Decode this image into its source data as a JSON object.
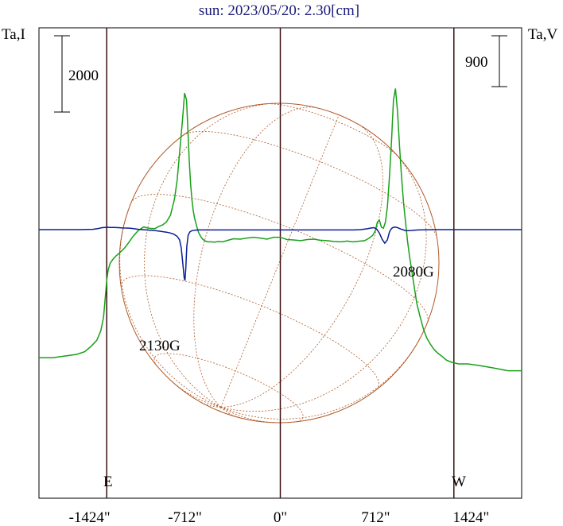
{
  "chart_data": {
    "type": "line",
    "title": "sun: 2023/05/20: 2.30[cm]",
    "left_axis_label": "Ta,I",
    "right_axis_label": "Ta,V",
    "x_unit": "arcsec",
    "xlim": [
      -1802,
      1802
    ],
    "x_ticks": [
      -1424,
      -712,
      0,
      712,
      1424
    ],
    "x_tick_labels": [
      "-1424\"",
      "-712\"",
      "0\"",
      "712\"",
      "1424\""
    ],
    "limb_lines_x": [
      -1296,
      0,
      1296
    ],
    "limb_labels": {
      "east": "E",
      "west": "W"
    },
    "scale_bar_left": {
      "label": "2000",
      "value": 2000
    },
    "scale_bar_right": {
      "label": "900",
      "value": 900
    },
    "annotations": [
      {
        "text": "2130G",
        "x": -712,
        "ref": "stokes_v_minimum_east"
      },
      {
        "text": "2080G",
        "x": 712,
        "ref": "stokes_v_minimum_west"
      }
    ],
    "series": [
      {
        "key": "stokes_i",
        "color": "#1aa01a",
        "x": [
          -1802,
          -1700,
          -1600,
          -1520,
          -1460,
          -1410,
          -1370,
          -1340,
          -1320,
          -1305,
          -1295,
          -1285,
          -1270,
          -1250,
          -1230,
          -1210,
          -1185,
          -1160,
          -1130,
          -1100,
          -1060,
          -1020,
          -985,
          -960,
          -935,
          -910,
          -880,
          -850,
          -820,
          -790,
          -770,
          -750,
          -730,
          -715,
          -700,
          -690,
          -680,
          -670,
          -660,
          -650,
          -640,
          -625,
          -610,
          -595,
          -580,
          -560,
          -540,
          -515,
          -490,
          -460,
          -430,
          -390,
          -350,
          -300,
          -250,
          -200,
          -150,
          -100,
          -50,
          0,
          50,
          100,
          150,
          200,
          250,
          300,
          350,
          400,
          450,
          500,
          540,
          570,
          600,
          630,
          660,
          690,
          710,
          725,
          740,
          755,
          770,
          785,
          800,
          815,
          830,
          845,
          860,
          875,
          890,
          905,
          920,
          935,
          950,
          965,
          980,
          1000,
          1020,
          1045,
          1070,
          1095,
          1120,
          1150,
          1180,
          1210,
          1240,
          1280,
          1330,
          1400,
          1480,
          1580,
          1700,
          1802
        ],
        "y": [
          -3360,
          -3360,
          -3310,
          -3270,
          -3200,
          -3050,
          -2900,
          -2650,
          -2300,
          -1700,
          -1300,
          -1050,
          -880,
          -780,
          -700,
          -640,
          -560,
          -470,
          -330,
          -180,
          -20,
          70,
          40,
          30,
          30,
          80,
          120,
          200,
          380,
          800,
          1300,
          2100,
          2900,
          3580,
          3400,
          2600,
          1800,
          1200,
          800,
          500,
          300,
          100,
          -80,
          -180,
          -250,
          -300,
          -320,
          -320,
          -330,
          -310,
          -320,
          -280,
          -240,
          -250,
          -220,
          -200,
          -220,
          -250,
          -200,
          -200,
          -260,
          -270,
          -290,
          -260,
          -250,
          -280,
          -290,
          -310,
          -320,
          -300,
          -320,
          -310,
          -300,
          -290,
          -230,
          -150,
          -20,
          200,
          250,
          60,
          40,
          200,
          600,
          1400,
          2300,
          3400,
          3700,
          3100,
          2200,
          1400,
          700,
          200,
          -300,
          -700,
          -1050,
          -1500,
          -1950,
          -2300,
          -2620,
          -2850,
          -3000,
          -3150,
          -3250,
          -3330,
          -3420,
          -3480,
          -3520,
          -3520,
          -3560,
          -3620,
          -3700,
          -3700
        ]
      },
      {
        "key": "stokes_v",
        "color": "#0a1e96",
        "x": [
          -1802,
          -1500,
          -1400,
          -1360,
          -1330,
          -1310,
          -1290,
          -1270,
          -1240,
          -1210,
          -1180,
          -1150,
          -1120,
          -1090,
          -1060,
          -1030,
          -1000,
          -970,
          -940,
          -910,
          -880,
          -850,
          -820,
          -795,
          -770,
          -752,
          -740,
          -728,
          -718,
          -712,
          -706,
          -698,
          -688,
          -675,
          -660,
          -640,
          -610,
          -580,
          -540,
          -500,
          -450,
          -400,
          -300,
          -200,
          -100,
          0,
          100,
          200,
          300,
          400,
          500,
          550,
          600,
          650,
          680,
          700,
          720,
          740,
          760,
          780,
          800,
          815,
          830,
          842,
          855,
          870,
          885,
          900,
          915,
          930,
          945,
          960,
          980,
          1000,
          1030,
          1080,
          1120,
          1180,
          1240,
          1300,
          1400,
          1500,
          1600,
          1802
        ],
        "y": [
          0,
          0,
          5,
          20,
          35,
          40,
          42,
          40,
          38,
          35,
          30,
          28,
          25,
          15,
          5,
          0,
          -5,
          -10,
          -15,
          -25,
          -35,
          -45,
          -60,
          -80,
          -120,
          -180,
          -320,
          -600,
          -850,
          -900,
          -700,
          -300,
          -100,
          -40,
          -20,
          -10,
          -5,
          -5,
          -5,
          -5,
          -5,
          -5,
          -5,
          -5,
          -5,
          -5,
          -5,
          -5,
          -5,
          -5,
          -5,
          -5,
          0,
          15,
          30,
          35,
          10,
          -60,
          -170,
          -240,
          -180,
          -40,
          20,
          40,
          45,
          40,
          25,
          10,
          0,
          -15,
          -20,
          -18,
          -15,
          -10,
          -5,
          -3,
          -2,
          0,
          0,
          0,
          0,
          0,
          0,
          0
        ]
      }
    ]
  }
}
